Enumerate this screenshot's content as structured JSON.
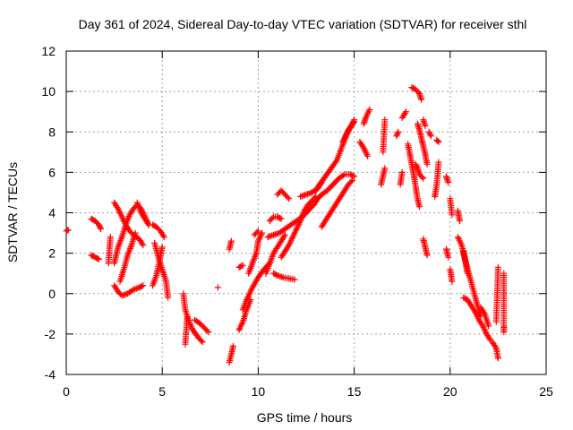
{
  "chart_data": {
    "type": "scatter",
    "title": "Day 361 of 2024, Sidereal Day-to-day VTEC variation (SDTVAR) for receiver sthl",
    "xlabel": "GPS time / hours",
    "ylabel": "SDTVAR / TECUs",
    "xlim": [
      0,
      25
    ],
    "ylim": [
      -4,
      12
    ],
    "xticks": [
      0,
      5,
      10,
      15,
      20,
      25
    ],
    "yticks": [
      -4,
      -2,
      0,
      2,
      4,
      6,
      8,
      10,
      12
    ],
    "grid": true,
    "marker": "+",
    "color": "#ff0000",
    "series": [
      {
        "name": "s01",
        "points": [
          [
            0.0,
            3.1
          ],
          [
            0.1,
            3.15
          ]
        ]
      },
      {
        "name": "s02",
        "points": [
          [
            1.3,
            3.7
          ],
          [
            1.5,
            3.6
          ],
          [
            1.7,
            3.4
          ],
          [
            1.8,
            3.2
          ]
        ]
      },
      {
        "name": "s03",
        "points": [
          [
            1.3,
            1.9
          ],
          [
            1.5,
            1.8
          ],
          [
            1.7,
            1.7
          ]
        ]
      },
      {
        "name": "s04",
        "points": [
          [
            2.2,
            1.5
          ],
          [
            2.3,
            2.8
          ]
        ]
      },
      {
        "name": "s05",
        "points": [
          [
            2.5,
            4.5
          ],
          [
            2.7,
            4.2
          ],
          [
            2.9,
            3.8
          ],
          [
            3.1,
            3.4
          ],
          [
            3.3,
            3.1
          ],
          [
            3.5,
            2.9
          ],
          [
            3.8,
            2.7
          ],
          [
            4.0,
            2.4
          ]
        ]
      },
      {
        "name": "s06",
        "points": [
          [
            2.5,
            0.4
          ],
          [
            2.7,
            0.1
          ],
          [
            2.9,
            -0.1
          ],
          [
            3.2,
            0.0
          ],
          [
            3.5,
            0.2
          ],
          [
            3.8,
            0.3
          ],
          [
            4.0,
            0.4
          ]
        ]
      },
      {
        "name": "s07",
        "points": [
          [
            2.5,
            1.5
          ],
          [
            2.7,
            2.3
          ],
          [
            2.9,
            2.8
          ],
          [
            3.1,
            3.4
          ],
          [
            3.3,
            3.9
          ],
          [
            3.5,
            4.2
          ],
          [
            3.7,
            4.4
          ],
          [
            3.9,
            4.2
          ],
          [
            4.1,
            3.8
          ],
          [
            4.3,
            3.4
          ]
        ]
      },
      {
        "name": "s08",
        "points": [
          [
            2.8,
            0.6
          ],
          [
            3.0,
            1.2
          ],
          [
            3.2,
            1.9
          ],
          [
            3.4,
            2.4
          ],
          [
            3.6,
            3.0
          ]
        ]
      },
      {
        "name": "s09",
        "points": [
          [
            3.7,
            4.5
          ],
          [
            3.9,
            4.0
          ],
          [
            4.1,
            3.7
          ],
          [
            4.3,
            3.4
          ]
        ]
      },
      {
        "name": "s10",
        "points": [
          [
            4.5,
            3.4
          ],
          [
            4.7,
            3.3
          ],
          [
            4.9,
            3.1
          ],
          [
            5.1,
            2.8
          ]
        ]
      },
      {
        "name": "s11",
        "points": [
          [
            4.6,
            2.5
          ],
          [
            4.8,
            1.8
          ],
          [
            5.0,
            1.2
          ],
          [
            5.2,
            0.6
          ],
          [
            5.3,
            -0.2
          ]
        ]
      },
      {
        "name": "s12",
        "points": [
          [
            4.5,
            0.4
          ],
          [
            4.7,
            0.9
          ],
          [
            4.9,
            1.8
          ],
          [
            5.0,
            2.3
          ]
        ]
      },
      {
        "name": "s13",
        "points": [
          [
            6.1,
            0.0
          ],
          [
            6.2,
            -0.8
          ],
          [
            6.4,
            -1.4
          ],
          [
            6.6,
            -1.8
          ],
          [
            6.9,
            -2.2
          ],
          [
            7.1,
            -2.4
          ]
        ]
      },
      {
        "name": "s14",
        "points": [
          [
            6.2,
            -2.5
          ],
          [
            6.3,
            -1.2
          ]
        ]
      },
      {
        "name": "s15",
        "points": [
          [
            6.7,
            -1.3
          ],
          [
            7.0,
            -1.5
          ],
          [
            7.2,
            -1.7
          ],
          [
            7.4,
            -1.9
          ]
        ]
      },
      {
        "name": "s16",
        "points": [
          [
            7.9,
            0.3
          ]
        ]
      },
      {
        "name": "s17",
        "points": [
          [
            8.5,
            -3.4
          ],
          [
            8.7,
            -2.6
          ]
        ]
      },
      {
        "name": "s18",
        "points": [
          [
            8.5,
            2.2
          ],
          [
            8.6,
            2.6
          ]
        ]
      },
      {
        "name": "s19",
        "points": [
          [
            9.0,
            -1.8
          ],
          [
            9.2,
            -1.4
          ],
          [
            9.4,
            -0.8
          ],
          [
            9.6,
            -0.3
          ]
        ]
      },
      {
        "name": "s20",
        "points": [
          [
            9.2,
            -0.8
          ],
          [
            9.4,
            -0.3
          ],
          [
            9.7,
            0.3
          ],
          [
            10.0,
            0.8
          ],
          [
            10.3,
            1.2
          ],
          [
            10.6,
            1.5
          ]
        ]
      },
      {
        "name": "s21",
        "points": [
          [
            9.0,
            1.3
          ],
          [
            9.2,
            1.4
          ]
        ]
      },
      {
        "name": "s22",
        "points": [
          [
            9.5,
            1.0
          ],
          [
            9.7,
            1.5
          ],
          [
            9.9,
            2.0
          ],
          [
            10.0,
            2.6
          ],
          [
            10.2,
            3.0
          ]
        ]
      },
      {
        "name": "s23",
        "points": [
          [
            9.8,
            2.9
          ],
          [
            10.0,
            3.1
          ]
        ]
      },
      {
        "name": "s24",
        "points": [
          [
            10.4,
            1.0
          ],
          [
            10.6,
            1.5
          ],
          [
            10.8,
            2.0
          ],
          [
            11.0,
            2.3
          ],
          [
            11.2,
            2.6
          ],
          [
            11.4,
            2.9
          ]
        ]
      },
      {
        "name": "s25",
        "points": [
          [
            10.5,
            2.8
          ],
          [
            10.8,
            2.9
          ],
          [
            11.1,
            3.0
          ],
          [
            11.4,
            3.2
          ],
          [
            11.7,
            3.4
          ],
          [
            12.0,
            3.6
          ],
          [
            12.3,
            3.8
          ],
          [
            12.6,
            4.1
          ],
          [
            12.9,
            4.4
          ],
          [
            13.1,
            4.7
          ]
        ]
      },
      {
        "name": "s26",
        "points": [
          [
            10.6,
            3.6
          ],
          [
            10.8,
            3.8
          ],
          [
            11.0,
            3.8
          ],
          [
            11.2,
            3.7
          ]
        ]
      },
      {
        "name": "s27",
        "points": [
          [
            10.8,
            1.0
          ],
          [
            11.0,
            0.9
          ],
          [
            11.3,
            0.8
          ],
          [
            11.6,
            0.75
          ],
          [
            11.9,
            0.7
          ]
        ]
      },
      {
        "name": "s28",
        "points": [
          [
            11.0,
            4.9
          ],
          [
            11.2,
            5.1
          ],
          [
            11.4,
            4.9
          ],
          [
            11.6,
            4.7
          ]
        ]
      },
      {
        "name": "s29",
        "points": [
          [
            11.2,
            1.8
          ],
          [
            11.4,
            2.1
          ],
          [
            11.6,
            2.4
          ],
          [
            11.8,
            2.8
          ],
          [
            12.0,
            3.2
          ],
          [
            12.2,
            3.6
          ],
          [
            12.4,
            4.1
          ],
          [
            12.6,
            4.4
          ],
          [
            12.8,
            4.6
          ],
          [
            13.0,
            4.8
          ]
        ]
      },
      {
        "name": "s30",
        "points": [
          [
            12.2,
            4.8
          ],
          [
            12.5,
            4.9
          ],
          [
            12.8,
            5.0
          ],
          [
            13.1,
            5.2
          ],
          [
            13.3,
            5.5
          ]
        ]
      },
      {
        "name": "s31",
        "points": [
          [
            13.3,
            3.3
          ],
          [
            13.5,
            3.6
          ],
          [
            13.7,
            3.9
          ],
          [
            13.9,
            4.2
          ],
          [
            14.1,
            4.5
          ],
          [
            14.3,
            4.8
          ],
          [
            14.5,
            5.1
          ],
          [
            14.7,
            5.4
          ],
          [
            14.9,
            5.6
          ]
        ]
      },
      {
        "name": "s32",
        "points": [
          [
            13.0,
            4.6
          ],
          [
            13.3,
            4.9
          ],
          [
            13.6,
            5.1
          ],
          [
            13.9,
            5.4
          ],
          [
            14.2,
            5.7
          ],
          [
            14.5,
            5.9
          ],
          [
            14.8,
            5.9
          ],
          [
            15.0,
            5.8
          ]
        ]
      },
      {
        "name": "s33",
        "points": [
          [
            13.0,
            5.1
          ],
          [
            13.2,
            5.4
          ],
          [
            13.5,
            5.8
          ],
          [
            13.8,
            6.2
          ],
          [
            14.1,
            6.6
          ],
          [
            14.3,
            7.1
          ],
          [
            14.5,
            7.6
          ],
          [
            14.7,
            8.1
          ],
          [
            14.9,
            8.4
          ],
          [
            15.0,
            8.6
          ]
        ]
      },
      {
        "name": "s34",
        "points": [
          [
            14.4,
            7.5
          ],
          [
            14.6,
            7.9
          ],
          [
            14.8,
            8.2
          ],
          [
            15.0,
            8.5
          ]
        ]
      },
      {
        "name": "s35",
        "points": [
          [
            15.5,
            8.4
          ],
          [
            15.6,
            8.7
          ],
          [
            15.8,
            9.1
          ]
        ]
      },
      {
        "name": "s36",
        "points": [
          [
            15.3,
            7.5
          ],
          [
            15.5,
            7.2
          ],
          [
            15.7,
            6.8
          ]
        ]
      },
      {
        "name": "s37",
        "points": [
          [
            16.5,
            7.0
          ],
          [
            16.6,
            8.6
          ]
        ]
      },
      {
        "name": "s38",
        "points": [
          [
            16.4,
            5.4
          ],
          [
            16.6,
            6.2
          ]
        ]
      },
      {
        "name": "s39",
        "points": [
          [
            17.2,
            7.8
          ],
          [
            17.3,
            8.0
          ]
        ]
      },
      {
        "name": "s40",
        "points": [
          [
            17.4,
            5.4
          ],
          [
            17.5,
            6.0
          ]
        ]
      },
      {
        "name": "s41",
        "points": [
          [
            17.5,
            8.7
          ],
          [
            17.7,
            9.0
          ]
        ]
      },
      {
        "name": "s42",
        "points": [
          [
            17.8,
            7.4
          ],
          [
            17.9,
            6.9
          ],
          [
            18.0,
            6.4
          ],
          [
            18.1,
            5.9
          ],
          [
            18.2,
            5.3
          ],
          [
            18.3,
            4.7
          ],
          [
            18.4,
            4.3
          ]
        ]
      },
      {
        "name": "s43",
        "points": [
          [
            18.0,
            10.2
          ],
          [
            18.2,
            10.1
          ],
          [
            18.4,
            9.9
          ],
          [
            18.5,
            9.6
          ]
        ]
      },
      {
        "name": "s44",
        "points": [
          [
            18.2,
            6.4
          ],
          [
            18.3,
            6.2
          ],
          [
            18.4,
            5.9
          ],
          [
            18.6,
            5.7
          ]
        ]
      },
      {
        "name": "s45",
        "points": [
          [
            18.3,
            8.4
          ],
          [
            18.4,
            8.1
          ],
          [
            18.5,
            7.7
          ],
          [
            18.6,
            7.3
          ],
          [
            18.7,
            6.9
          ],
          [
            18.8,
            6.4
          ]
        ]
      },
      {
        "name": "s46",
        "points": [
          [
            18.6,
            8.6
          ],
          [
            18.7,
            8.3
          ]
        ]
      },
      {
        "name": "s47",
        "points": [
          [
            18.6,
            2.7
          ],
          [
            18.7,
            2.3
          ],
          [
            18.8,
            1.9
          ]
        ]
      },
      {
        "name": "s48",
        "points": [
          [
            18.9,
            8.0
          ],
          [
            19.0,
            7.8
          ]
        ]
      },
      {
        "name": "s49",
        "points": [
          [
            19.2,
            4.8
          ],
          [
            19.3,
            5.4
          ],
          [
            19.4,
            6.5
          ]
        ]
      },
      {
        "name": "s50",
        "points": [
          [
            19.3,
            7.6
          ],
          [
            19.4,
            7.5
          ]
        ]
      },
      {
        "name": "s51",
        "points": [
          [
            19.8,
            5.8
          ],
          [
            19.9,
            5.5
          ]
        ]
      },
      {
        "name": "s52",
        "points": [
          [
            19.8,
            2.2
          ],
          [
            19.9,
            1.8
          ]
        ]
      },
      {
        "name": "s53",
        "points": [
          [
            20.0,
            4.7
          ],
          [
            20.1,
            3.9
          ]
        ]
      },
      {
        "name": "s54",
        "points": [
          [
            20.1,
            0.6
          ],
          [
            20.0,
            1.2
          ]
        ]
      },
      {
        "name": "s55",
        "points": [
          [
            20.4,
            4.1
          ],
          [
            20.5,
            3.6
          ]
        ]
      },
      {
        "name": "s56",
        "points": [
          [
            20.4,
            2.8
          ],
          [
            20.6,
            2.4
          ],
          [
            20.8,
            1.6
          ],
          [
            21.0,
            0.9
          ],
          [
            21.2,
            0.2
          ],
          [
            21.4,
            -0.5
          ],
          [
            21.6,
            -1.1
          ]
        ]
      },
      {
        "name": "s57",
        "points": [
          [
            20.7,
            -0.2
          ],
          [
            20.9,
            -0.3
          ],
          [
            21.1,
            -0.6
          ],
          [
            21.3,
            -0.9
          ],
          [
            21.5,
            -1.3
          ],
          [
            21.7,
            -1.6
          ],
          [
            21.9,
            -2.0
          ],
          [
            22.1,
            -2.3
          ]
        ]
      },
      {
        "name": "s58",
        "points": [
          [
            20.7,
            2.1
          ],
          [
            20.9,
            1.0
          ]
        ]
      },
      {
        "name": "s59",
        "points": [
          [
            21.6,
            -0.7
          ],
          [
            21.8,
            -1.0
          ],
          [
            22.0,
            -1.6
          ]
        ]
      },
      {
        "name": "s60",
        "points": [
          [
            22.2,
            -2.4
          ],
          [
            22.4,
            -2.7
          ],
          [
            22.5,
            -3.2
          ]
        ]
      },
      {
        "name": "s61",
        "points": [
          [
            22.4,
            -1.4
          ],
          [
            22.5,
            1.3
          ]
        ]
      },
      {
        "name": "s62",
        "points": [
          [
            22.8,
            1.0
          ],
          [
            22.8,
            -1.6
          ],
          [
            22.8,
            -1.9
          ]
        ]
      }
    ]
  }
}
